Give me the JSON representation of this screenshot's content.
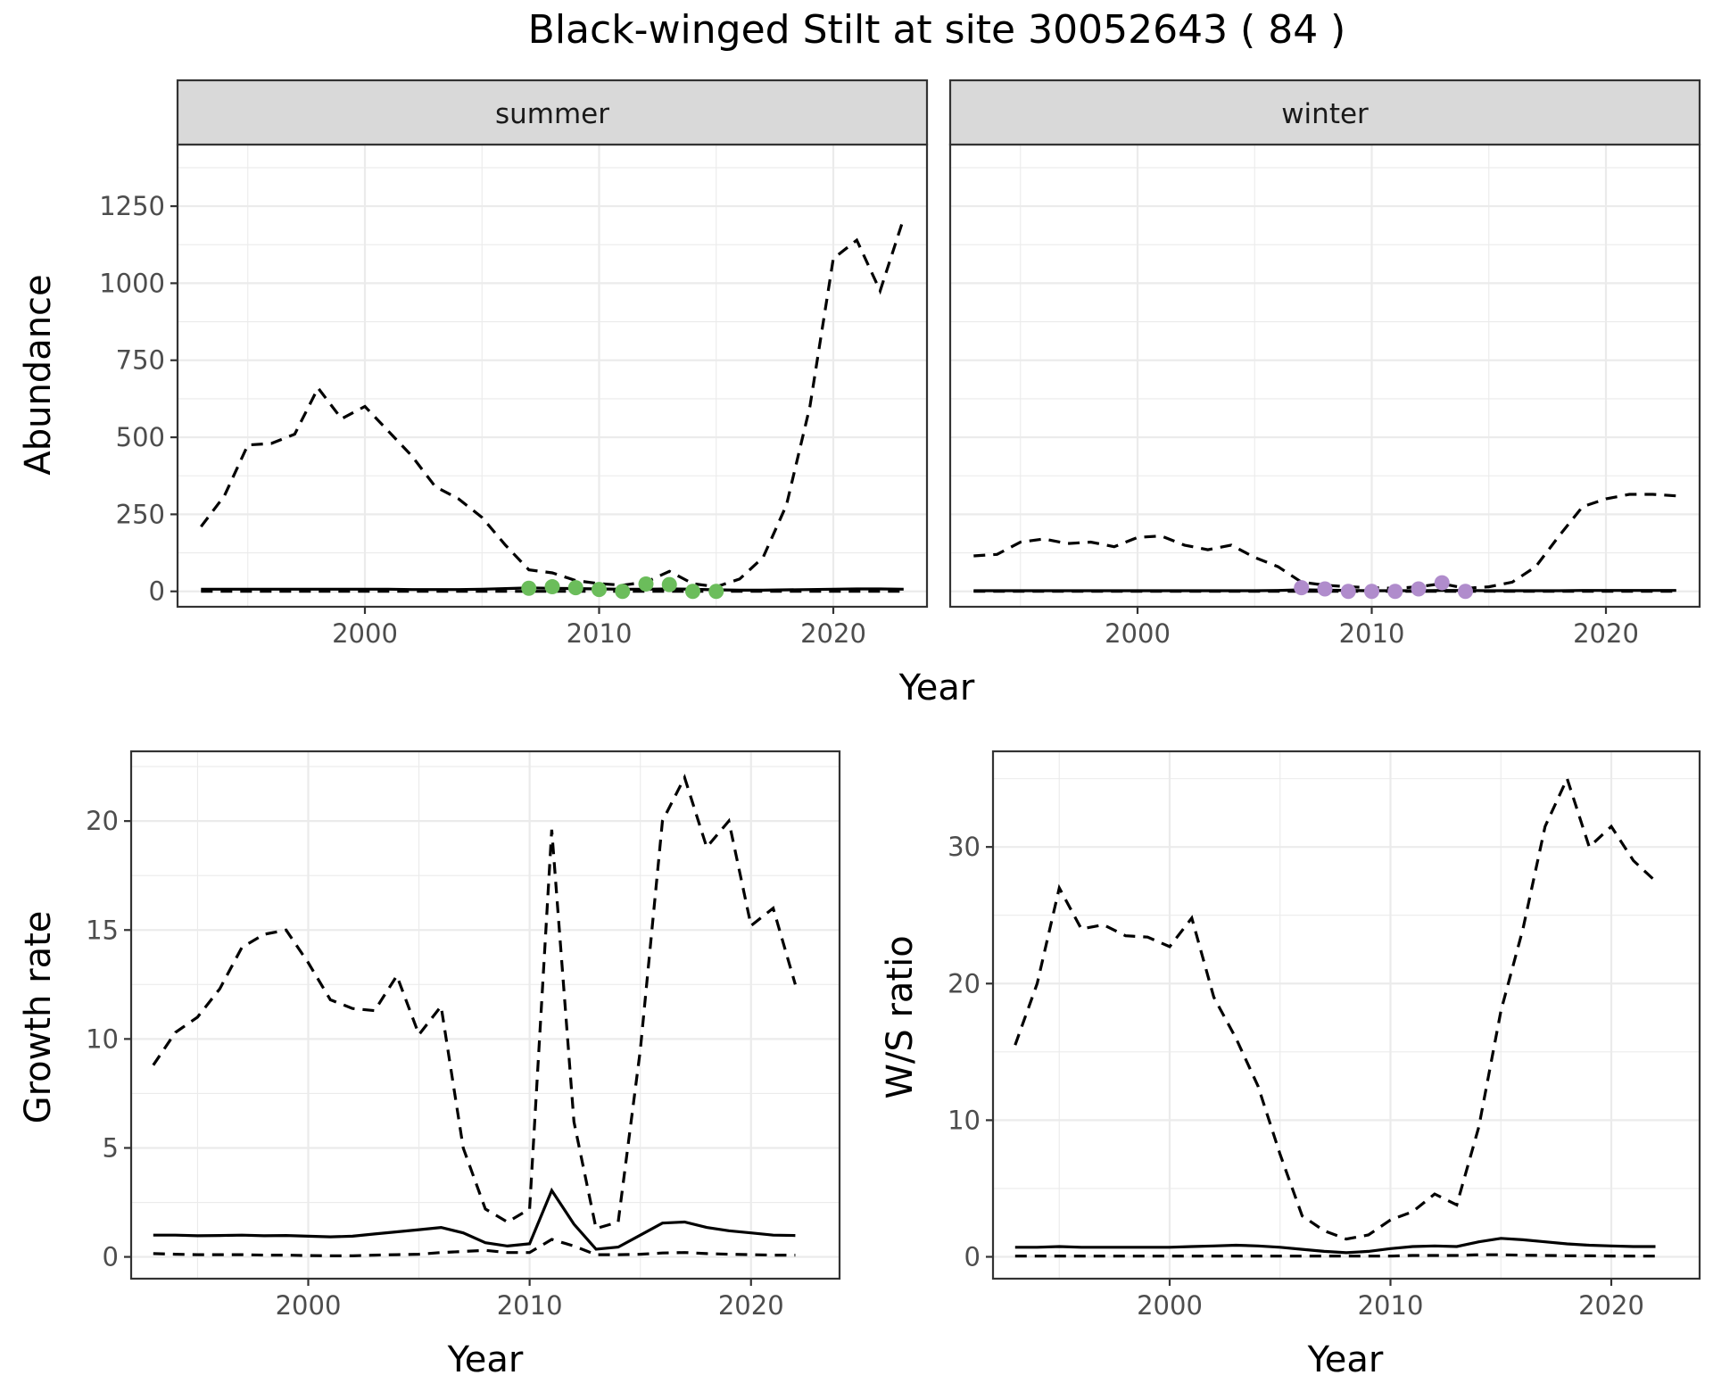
{
  "title": "Black-winged Stilt at site 30052643 ( 84 )",
  "chart_data": [
    {
      "type": "line",
      "facet": "summer",
      "xlabel": "",
      "ylabel": "Abundance",
      "xlim": [
        1992,
        2024
      ],
      "ylim": [
        -50,
        1450
      ],
      "x_ticks": [
        2000,
        2010,
        2020
      ],
      "y_ticks": [
        0,
        250,
        500,
        750,
        1000,
        1250
      ],
      "grid": true,
      "point_color": "#6bbd5b",
      "x": [
        1993,
        1994,
        1995,
        1996,
        1997,
        1998,
        1999,
        2000,
        2001,
        2002,
        2003,
        2004,
        2005,
        2006,
        2007,
        2008,
        2009,
        2010,
        2011,
        2012,
        2013,
        2014,
        2015,
        2016,
        2017,
        2018,
        2019,
        2020,
        2021,
        2022,
        2023
      ],
      "series": [
        {
          "style": "solid",
          "values": [
            7,
            7,
            7,
            7,
            7,
            7,
            7,
            7,
            7,
            6,
            6,
            6,
            7,
            9,
            11,
            10,
            9,
            8,
            7,
            7,
            8,
            7,
            5,
            4,
            4,
            5,
            6,
            7,
            8,
            8,
            7
          ]
        },
        {
          "style": "dashed-upper",
          "values": [
            210,
            310,
            475,
            480,
            510,
            660,
            560,
            600,
            520,
            440,
            340,
            300,
            240,
            150,
            70,
            60,
            35,
            25,
            20,
            30,
            65,
            25,
            15,
            40,
            110,
            280,
            600,
            1080,
            1140,
            975,
            1210
          ]
        },
        {
          "style": "dashed-lower",
          "values": [
            0,
            0,
            0,
            0,
            0,
            0,
            0,
            0,
            0,
            0,
            0,
            0,
            0,
            0,
            0,
            0,
            0,
            0,
            0,
            0,
            0,
            0,
            0,
            0,
            0,
            0,
            0,
            0,
            0,
            0,
            0
          ]
        }
      ],
      "points": {
        "x": [
          2007,
          2008,
          2009,
          2010,
          2011,
          2012,
          2013,
          2014,
          2015
        ],
        "y": [
          10,
          15,
          12,
          6,
          0,
          24,
          22,
          0,
          0
        ]
      }
    },
    {
      "type": "line",
      "facet": "winter",
      "xlabel": "Year",
      "ylabel": "",
      "xlim": [
        1992,
        2024
      ],
      "ylim": [
        -50,
        1450
      ],
      "x_ticks": [
        2000,
        2010,
        2020
      ],
      "y_ticks": [
        0,
        250,
        500,
        750,
        1000,
        1250
      ],
      "grid": true,
      "point_color": "#b08ccc",
      "x": [
        1993,
        1994,
        1995,
        1996,
        1997,
        1998,
        1999,
        2000,
        2001,
        2002,
        2003,
        2004,
        2005,
        2006,
        2007,
        2008,
        2009,
        2010,
        2011,
        2012,
        2013,
        2014,
        2015,
        2016,
        2017,
        2018,
        2019,
        2020,
        2021,
        2022,
        2023
      ],
      "series": [
        {
          "style": "solid",
          "values": [
            2,
            2,
            2,
            2,
            2,
            2,
            2,
            2,
            2,
            2,
            2,
            2,
            2,
            3,
            5,
            4,
            3,
            2,
            2,
            2,
            3,
            3,
            2,
            2,
            2,
            2,
            3,
            3,
            3,
            3,
            3
          ]
        },
        {
          "style": "dashed-upper",
          "values": [
            115,
            120,
            160,
            170,
            155,
            160,
            145,
            175,
            180,
            150,
            135,
            150,
            110,
            80,
            30,
            20,
            15,
            12,
            10,
            15,
            25,
            10,
            15,
            30,
            80,
            180,
            275,
            300,
            315,
            315,
            310
          ]
        },
        {
          "style": "dashed-lower",
          "values": [
            0,
            0,
            0,
            0,
            0,
            0,
            0,
            0,
            0,
            0,
            0,
            0,
            0,
            0,
            0,
            0,
            0,
            0,
            0,
            0,
            0,
            0,
            0,
            0,
            0,
            0,
            0,
            0,
            0,
            0,
            0
          ]
        }
      ],
      "points": {
        "x": [
          2007,
          2008,
          2009,
          2010,
          2011,
          2012,
          2013,
          2014
        ],
        "y": [
          12,
          8,
          0,
          0,
          0,
          8,
          28,
          0
        ]
      }
    },
    {
      "type": "line",
      "xlabel": "Year",
      "ylabel": "Growth rate",
      "xlim": [
        1992,
        2024
      ],
      "ylim": [
        -1,
        23.2
      ],
      "x_ticks": [
        2000,
        2010,
        2020
      ],
      "y_ticks": [
        0,
        5,
        10,
        15,
        20
      ],
      "grid": true,
      "x": [
        1993,
        1994,
        1995,
        1996,
        1997,
        1998,
        1999,
        2000,
        2001,
        2002,
        2003,
        2004,
        2005,
        2006,
        2007,
        2008,
        2009,
        2010,
        2011,
        2012,
        2013,
        2014,
        2015,
        2016,
        2017,
        2018,
        2019,
        2020,
        2021,
        2022
      ],
      "series": [
        {
          "style": "solid",
          "values": [
            1.0,
            1.0,
            0.97,
            0.98,
            1.0,
            0.97,
            0.98,
            0.95,
            0.92,
            0.95,
            1.05,
            1.15,
            1.25,
            1.35,
            1.1,
            0.65,
            0.5,
            0.6,
            3.05,
            1.5,
            0.35,
            0.45,
            1.0,
            1.55,
            1.6,
            1.35,
            1.2,
            1.1,
            1.0,
            0.98
          ]
        },
        {
          "style": "dashed-upper",
          "values": [
            8.8,
            10.3,
            11.0,
            12.3,
            14.2,
            14.8,
            15.0,
            13.5,
            11.8,
            11.4,
            11.3,
            12.9,
            10.2,
            11.5,
            5.0,
            2.2,
            1.6,
            2.2,
            19.6,
            6.2,
            1.3,
            1.6,
            9.5,
            20.0,
            22.0,
            18.8,
            20.0,
            15.2,
            16.0,
            12.5
          ]
        },
        {
          "style": "dashed-lower",
          "values": [
            0.15,
            0.12,
            0.1,
            0.1,
            0.1,
            0.08,
            0.08,
            0.06,
            0.05,
            0.05,
            0.08,
            0.1,
            0.12,
            0.2,
            0.25,
            0.3,
            0.2,
            0.2,
            0.8,
            0.5,
            0.1,
            0.1,
            0.12,
            0.18,
            0.2,
            0.15,
            0.12,
            0.1,
            0.08,
            0.08
          ]
        }
      ]
    },
    {
      "type": "line",
      "xlabel": "Year",
      "ylabel": "W/S ratio",
      "xlim": [
        1992,
        2024
      ],
      "ylim": [
        -1.6,
        37
      ],
      "x_ticks": [
        2000,
        2010,
        2020
      ],
      "y_ticks": [
        0,
        10,
        20,
        30
      ],
      "grid": true,
      "x": [
        1993,
        1994,
        1995,
        1996,
        1997,
        1998,
        1999,
        2000,
        2001,
        2002,
        2003,
        2004,
        2005,
        2006,
        2007,
        2008,
        2009,
        2010,
        2011,
        2012,
        2013,
        2014,
        2015,
        2016,
        2017,
        2018,
        2019,
        2020,
        2021,
        2022
      ],
      "series": [
        {
          "style": "solid",
          "values": [
            0.7,
            0.7,
            0.75,
            0.7,
            0.7,
            0.7,
            0.7,
            0.7,
            0.75,
            0.8,
            0.85,
            0.8,
            0.7,
            0.55,
            0.4,
            0.3,
            0.4,
            0.6,
            0.75,
            0.8,
            0.75,
            1.1,
            1.35,
            1.25,
            1.1,
            0.95,
            0.85,
            0.8,
            0.75,
            0.75
          ]
        },
        {
          "style": "dashed-upper",
          "values": [
            15.5,
            20.0,
            27.0,
            24.0,
            24.3,
            23.5,
            23.4,
            22.7,
            24.8,
            19.0,
            16.0,
            12.5,
            7.5,
            3.0,
            1.9,
            1.3,
            1.6,
            2.7,
            3.3,
            4.6,
            3.8,
            9.5,
            18.0,
            24.0,
            31.5,
            35.0,
            30.0,
            31.5,
            29.0,
            27.5
          ]
        },
        {
          "style": "dashed-lower",
          "values": [
            0.05,
            0.05,
            0.05,
            0.05,
            0.05,
            0.05,
            0.05,
            0.05,
            0.05,
            0.05,
            0.05,
            0.05,
            0.05,
            0.05,
            0.05,
            0.05,
            0.05,
            0.05,
            0.1,
            0.1,
            0.1,
            0.15,
            0.15,
            0.12,
            0.1,
            0.08,
            0.07,
            0.06,
            0.05,
            0.05
          ]
        }
      ]
    }
  ]
}
